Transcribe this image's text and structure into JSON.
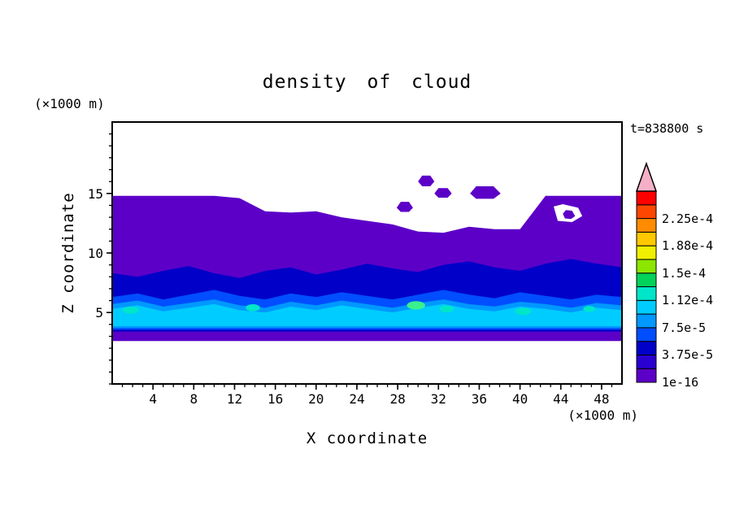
{
  "chart_data": {
    "type": "heatmap",
    "title": "density of cloud",
    "time_annotation": "t=838800 s",
    "xlabel": "X coordinate",
    "x_unit": "(×1000 m)",
    "ylabel": "Z coordinate",
    "y_unit": "(×1000 m)",
    "xlim": [
      0,
      50
    ],
    "ylim": [
      -1,
      21
    ],
    "x_ticks": [
      4,
      8,
      12,
      16,
      20,
      24,
      28,
      32,
      36,
      40,
      44,
      48
    ],
    "x_minor_step": 1,
    "y_ticks": [
      5,
      10,
      15
    ],
    "y_minor_step": 1,
    "grid": false,
    "legend_position": "right-colorbar",
    "levels": [
      "1e-16",
      "3.75e-5",
      "7.5e-5",
      "1.12e-4",
      "1.5e-4",
      "1.88e-4",
      "2.25e-4"
    ],
    "colorbar_colors": [
      "#5c00c8",
      "#2a00d2",
      "#0000c8",
      "#004eff",
      "#0098ff",
      "#00ccff",
      "#00e6c8",
      "#00d25a",
      "#8ce600",
      "#f0f000",
      "#ffc800",
      "#ff8c00",
      "#ff4600",
      "#ff0000"
    ],
    "overflow_arrow_color": "#f5b0c8",
    "x_samples": [
      0,
      2.5,
      5,
      7.5,
      10,
      12.5,
      15,
      17.5,
      20,
      22.5,
      25,
      27.5,
      30,
      32.5,
      35,
      37.5,
      40,
      42.5,
      45,
      47.5,
      50
    ],
    "bands": [
      {
        "name": "ge-1e-16",
        "color": "#5c00c8",
        "top": [
          14.8,
          14.8,
          14.8,
          14.8,
          14.8,
          14.6,
          13.5,
          13.4,
          13.5,
          13.0,
          12.7,
          12.4,
          11.8,
          11.7,
          12.2,
          12.0,
          12.0,
          14.8,
          14.8,
          14.8,
          14.8
        ],
        "bottom": 2.6
      },
      {
        "name": "ge-3.75e-5",
        "color": "#0000c8",
        "top": [
          8.3,
          8.0,
          8.5,
          8.9,
          8.3,
          7.9,
          8.5,
          8.8,
          8.2,
          8.6,
          9.1,
          8.7,
          8.4,
          9.0,
          9.3,
          8.8,
          8.5,
          9.1,
          9.5,
          9.1,
          8.8
        ],
        "bottom": 3.4
      },
      {
        "name": "ge-7.5e-5",
        "color": "#004eff",
        "top": [
          6.3,
          6.6,
          6.1,
          6.5,
          6.9,
          6.4,
          6.1,
          6.6,
          6.3,
          6.7,
          6.4,
          6.1,
          6.5,
          6.9,
          6.5,
          6.2,
          6.7,
          6.4,
          6.1,
          6.5,
          6.3
        ],
        "bottom": 3.55
      },
      {
        "name": "ge-1.12e-4",
        "color": "#0098ff",
        "top": [
          5.7,
          6.0,
          5.5,
          5.8,
          6.1,
          5.6,
          5.4,
          5.9,
          5.6,
          6.0,
          5.7,
          5.4,
          5.8,
          6.1,
          5.7,
          5.5,
          5.9,
          5.7,
          5.4,
          5.8,
          5.6
        ],
        "bottom": 3.7
      },
      {
        "name": "ge-1.5e-4",
        "color": "#00ccff",
        "top": [
          5.3,
          5.6,
          5.1,
          5.4,
          5.7,
          5.2,
          5.0,
          5.5,
          5.2,
          5.6,
          5.3,
          5.0,
          5.4,
          5.7,
          5.3,
          5.1,
          5.5,
          5.3,
          5.0,
          5.4,
          5.2
        ],
        "bottom": 3.85
      }
    ],
    "patches": [
      {
        "name": "white-hole-right",
        "color": "#ffffff",
        "points": [
          [
            43.3,
            13.9
          ],
          [
            44.2,
            14.1
          ],
          [
            45.7,
            13.8
          ],
          [
            46.1,
            13.1
          ],
          [
            45.1,
            12.6
          ],
          [
            43.7,
            12.7
          ]
        ]
      },
      {
        "name": "cloud-blob-a",
        "color": "#5c00c8",
        "points": [
          [
            30.0,
            16.0
          ],
          [
            30.4,
            16.5
          ],
          [
            31.2,
            16.5
          ],
          [
            31.6,
            16.0
          ],
          [
            31.2,
            15.6
          ],
          [
            30.4,
            15.6
          ]
        ]
      },
      {
        "name": "cloud-blob-b",
        "color": "#5c00c8",
        "points": [
          [
            31.6,
            15.0
          ],
          [
            32.0,
            15.45
          ],
          [
            32.9,
            15.45
          ],
          [
            33.3,
            15.0
          ],
          [
            32.9,
            14.65
          ],
          [
            32.0,
            14.65
          ]
        ]
      },
      {
        "name": "cloud-blob-c",
        "color": "#5c00c8",
        "points": [
          [
            35.1,
            15.0
          ],
          [
            35.7,
            15.6
          ],
          [
            37.4,
            15.6
          ],
          [
            38.1,
            15.0
          ],
          [
            37.4,
            14.55
          ],
          [
            35.7,
            14.55
          ]
        ]
      },
      {
        "name": "cloud-blob-d",
        "color": "#5c00c8",
        "points": [
          [
            27.9,
            13.8
          ],
          [
            28.3,
            14.3
          ],
          [
            29.1,
            14.3
          ],
          [
            29.5,
            13.8
          ],
          [
            29.1,
            13.45
          ],
          [
            28.3,
            13.45
          ]
        ]
      },
      {
        "name": "cloud-blob-e",
        "color": "#5c00c8",
        "points": [
          [
            44.2,
            13.3
          ],
          [
            44.5,
            13.6
          ],
          [
            45.1,
            13.55
          ],
          [
            45.4,
            13.1
          ],
          [
            45.0,
            12.85
          ],
          [
            44.4,
            12.9
          ]
        ]
      }
    ],
    "specks": [
      {
        "color": "#00e6c8",
        "cx": 1.8,
        "cy": 5.2,
        "rx": 0.8,
        "ry": 0.3
      },
      {
        "color": "#00e6c8",
        "cx": 13.8,
        "cy": 5.4,
        "rx": 0.7,
        "ry": 0.3
      },
      {
        "color": "#3cf08c",
        "cx": 29.8,
        "cy": 5.6,
        "rx": 0.9,
        "ry": 0.35
      },
      {
        "color": "#00e6c8",
        "cx": 32.8,
        "cy": 5.3,
        "rx": 0.7,
        "ry": 0.3
      },
      {
        "color": "#00e6c8",
        "cx": 40.3,
        "cy": 5.1,
        "rx": 0.8,
        "ry": 0.3
      },
      {
        "color": "#00e6c8",
        "cx": 46.8,
        "cy": 5.3,
        "rx": 0.6,
        "ry": 0.25
      }
    ]
  }
}
